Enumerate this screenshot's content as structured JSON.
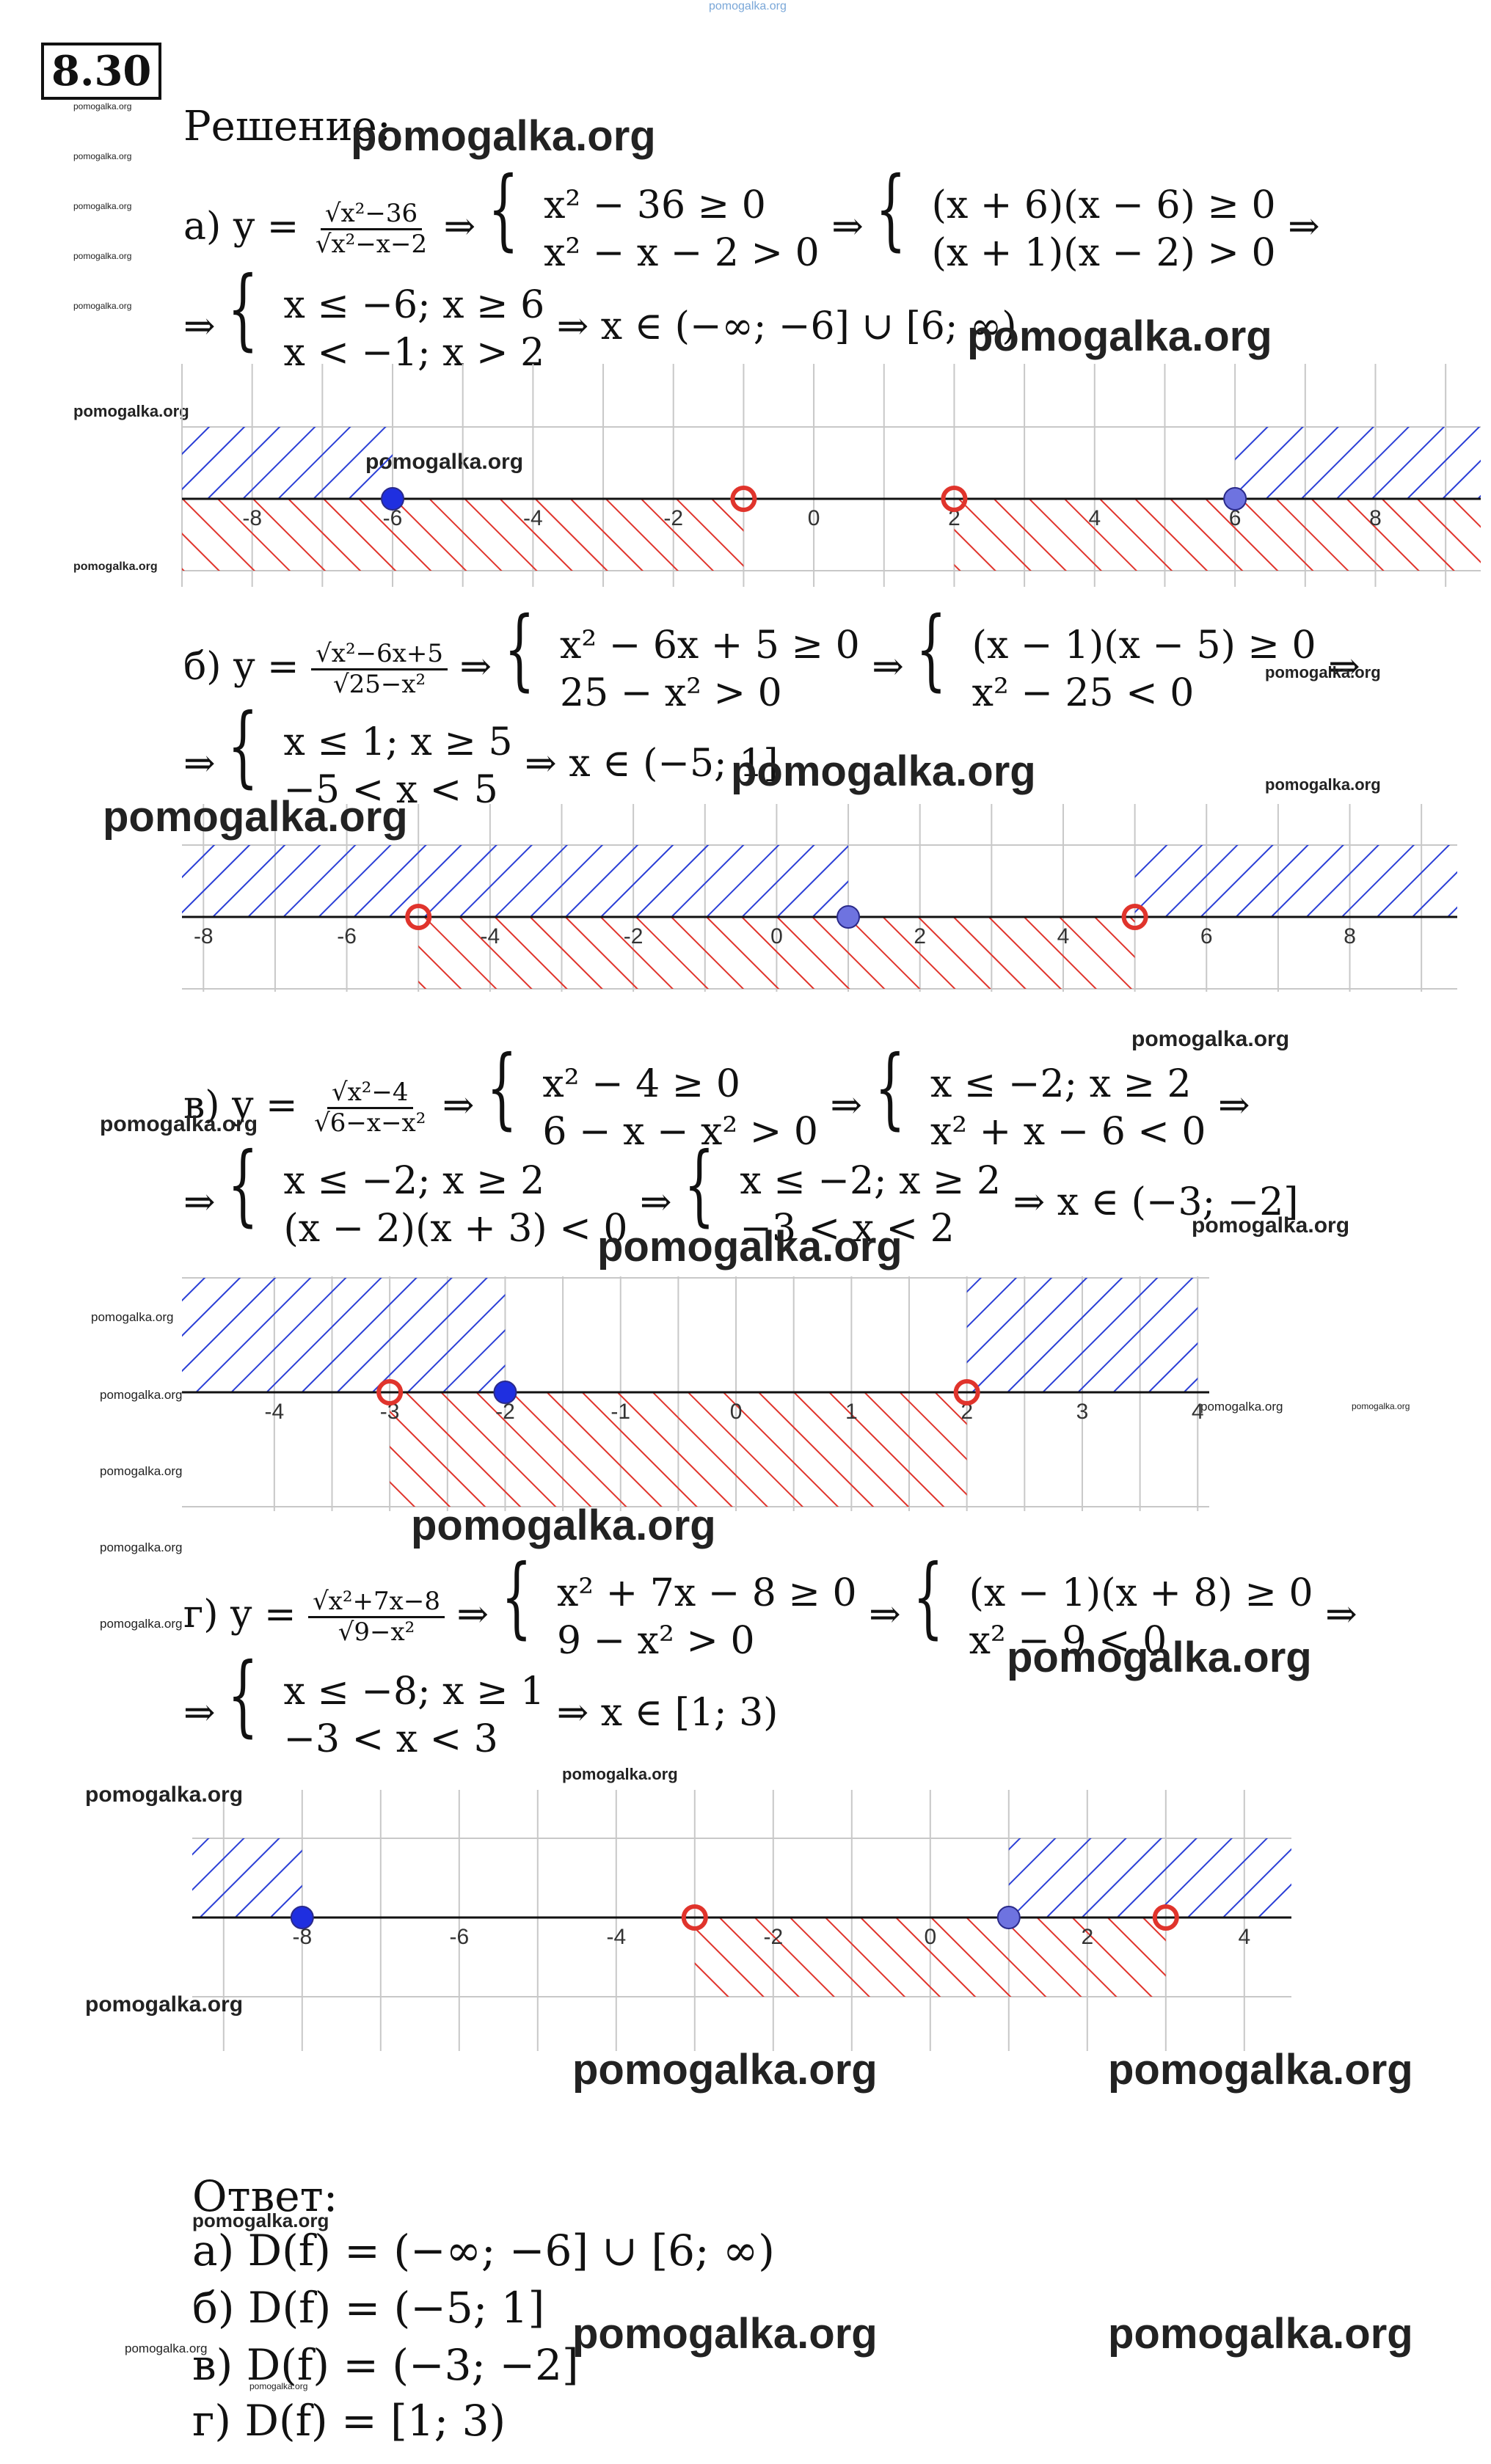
{
  "problem_number": "8.30",
  "watermark": "pomogalka.org",
  "solution_label": "Решение:",
  "answer_label": "Ответ:",
  "parts": [
    {
      "label": "а)",
      "func_num": "√x²−36",
      "func_den": "√x²−x−2",
      "step1": [
        "x² − 36 ≥ 0",
        "x² − x − 2 > 0"
      ],
      "step2": [
        "(x + 6)(x − 6) ≥ 0",
        "(x + 1)(x − 2) > 0"
      ],
      "step3": [
        "x ≤ −6; x ≥ 6",
        "x < −1; x > 2"
      ],
      "result": "⇒ x ∈ (−∞; −6] ∪ [6; ∞)"
    },
    {
      "label": "б)",
      "func_num": "√x²−6x+5",
      "func_den": "√25−x²",
      "step1": [
        "x² − 6x + 5 ≥ 0",
        "25 − x² > 0"
      ],
      "step2": [
        "(x − 1)(x − 5) ≥ 0",
        "x² − 25 < 0"
      ],
      "step3": [
        "x ≤ 1; x ≥ 5",
        "−5 < x < 5"
      ],
      "result": "⇒ x ∈ (−5; 1]"
    },
    {
      "label": "в)",
      "func_num": "√x²−4",
      "func_den": "√6−x−x²",
      "step1": [
        "x² − 4 ≥ 0",
        "6 − x − x² > 0"
      ],
      "step2": [
        "x ≤ −2; x ≥ 2",
        "x² + x − 6 < 0"
      ],
      "step3": [
        "x ≤ −2; x ≥ 2",
        "(x − 2)(x + 3) < 0"
      ],
      "step4": [
        "x ≤ −2; x ≥ 2",
        "−3 < x < 2"
      ],
      "result": "⇒ x ∈ (−3; −2]"
    },
    {
      "label": "г)",
      "func_num": "√x²+7x−8",
      "func_den": "√9−x²",
      "step1": [
        "x² + 7x − 8 ≥ 0",
        "9 − x² > 0"
      ],
      "step2": [
        "(x − 1)(x + 8) ≥ 0",
        "x² − 9 < 0"
      ],
      "step3": [
        "x ≤ −8; x ≥ 1",
        "−3 < x < 3"
      ],
      "result": "⇒ x ∈ [1; 3)"
    }
  ],
  "answers": [
    "а) D(f) = (−∞; −6] ∪ [6; ∞)",
    "б) D(f) = (−5; 1]",
    "в) D(f) = (−3; −2]",
    "г) D(f) = [1; 3)"
  ],
  "number_lines": [
    {
      "xmin": -9,
      "xmax": 9.5,
      "ticks": [
        "-8",
        "-6",
        "-4",
        "-2",
        "0",
        "2",
        "4",
        "6",
        "8"
      ],
      "blue_regions": [
        [
          -9,
          -6
        ],
        [
          6,
          9.5
        ]
      ],
      "red_regions": [
        [
          -9,
          -1
        ],
        [
          2,
          9.5
        ]
      ],
      "filled_points": [
        -6,
        6
      ],
      "open_points": [
        -1,
        2
      ]
    },
    {
      "xmin": -8.3,
      "xmax": 9.5,
      "ticks": [
        "-8",
        "-6",
        "-4",
        "-2",
        "0",
        "2",
        "4",
        "6",
        "8"
      ],
      "blue_regions": [
        [
          -8.3,
          1
        ],
        [
          5,
          9.5
        ]
      ],
      "red_regions": [
        [
          -5,
          5
        ]
      ],
      "filled_points": [
        1
      ],
      "open_points": [
        -5,
        5
      ]
    },
    {
      "xmin": -4.8,
      "xmax": 4.1,
      "ticks": [
        "-4",
        "-3",
        "-2",
        "-1",
        "0",
        "1",
        "2",
        "3",
        "4"
      ],
      "blue_regions": [
        [
          -4.8,
          -2
        ],
        [
          2,
          4
        ]
      ],
      "red_regions": [
        [
          -3,
          2
        ]
      ],
      "filled_points": [
        -2
      ],
      "open_points": [
        -3,
        2
      ]
    },
    {
      "xmin": -9.4,
      "xmax": 4.6,
      "ticks": [
        "-8",
        "-6",
        "-4",
        "-2",
        "0",
        "2",
        "4"
      ],
      "blue_regions": [
        [
          -9.4,
          -8
        ],
        [
          1,
          4.6
        ]
      ],
      "red_regions": [
        [
          -3,
          3
        ]
      ],
      "filled_points": [
        -8,
        1
      ],
      "open_points": [
        -3,
        3
      ]
    }
  ],
  "colors": {
    "blue": "#2b3fd6",
    "red": "#e0342c",
    "grid": "#c8c8c8"
  }
}
